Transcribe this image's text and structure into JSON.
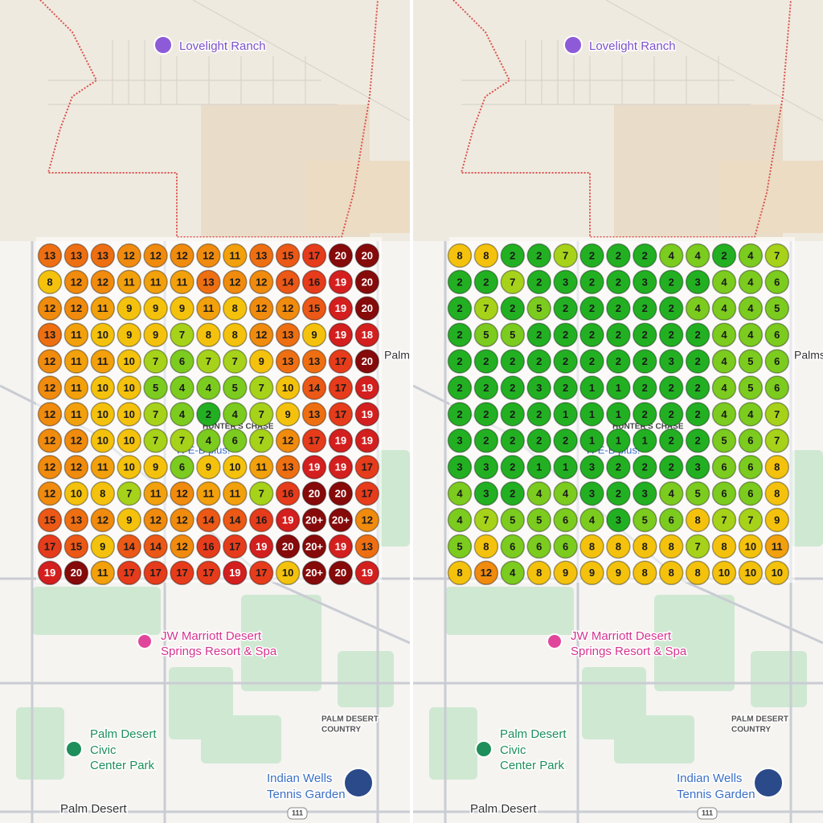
{
  "panels": [
    {
      "labels": [
        "Lovelight Ranch",
        "JW Marriott Desert",
        "Springs Resort & Spa",
        "PALM DESERT",
        "COUNTRY",
        "Palm Desert",
        "Civic",
        "Center Park",
        "Indian Wells",
        "Tennis Garden",
        "Palm Desert",
        "111",
        "HUNTER'S CHASE",
        "H-E-B plus!",
        "Palms"
      ],
      "grid": [
        [
          13,
          13,
          13,
          12,
          12,
          12,
          12,
          11,
          13,
          15,
          17,
          20,
          20
        ],
        [
          8,
          12,
          12,
          11,
          11,
          11,
          13,
          12,
          12,
          14,
          16,
          19,
          20
        ],
        [
          12,
          12,
          11,
          9,
          9,
          9,
          11,
          8,
          12,
          12,
          15,
          19,
          20
        ],
        [
          13,
          11,
          10,
          9,
          9,
          7,
          8,
          8,
          12,
          13,
          9,
          19,
          18
        ],
        [
          12,
          11,
          11,
          10,
          7,
          6,
          7,
          7,
          9,
          13,
          13,
          17,
          20
        ],
        [
          12,
          11,
          10,
          10,
          5,
          4,
          4,
          5,
          7,
          10,
          14,
          17,
          19
        ],
        [
          12,
          11,
          10,
          10,
          7,
          4,
          2,
          4,
          7,
          9,
          13,
          17,
          19
        ],
        [
          12,
          12,
          10,
          10,
          7,
          7,
          4,
          6,
          7,
          12,
          17,
          19,
          19
        ],
        [
          12,
          12,
          11,
          10,
          9,
          6,
          9,
          10,
          11,
          13,
          19,
          19,
          17
        ],
        [
          12,
          10,
          8,
          7,
          11,
          12,
          11,
          11,
          7,
          16,
          20,
          20,
          17
        ],
        [
          15,
          13,
          12,
          9,
          12,
          12,
          14,
          14,
          16,
          19,
          "20+",
          "20+",
          12
        ],
        [
          17,
          15,
          9,
          14,
          14,
          12,
          16,
          17,
          19,
          20,
          "20+",
          19,
          13
        ],
        [
          19,
          20,
          11,
          17,
          17,
          17,
          17,
          19,
          17,
          10,
          "20+",
          20,
          19
        ]
      ]
    },
    {
      "labels": [
        "Lovelight Ranch",
        "JW Marriott Desert",
        "Springs Resort & Spa",
        "PALM DESERT",
        "COUNTRY",
        "Palm Desert",
        "Civic",
        "Center Park",
        "Indian Wells",
        "Tennis Garden",
        "Palm Desert",
        "111",
        "HUNTER'S CHASE",
        "H-E-B plus!",
        "Palms"
      ],
      "grid": [
        [
          8,
          8,
          2,
          2,
          7,
          2,
          2,
          2,
          4,
          4,
          2,
          4,
          7
        ],
        [
          2,
          2,
          7,
          2,
          3,
          2,
          2,
          3,
          2,
          3,
          4,
          4,
          6
        ],
        [
          2,
          7,
          2,
          5,
          2,
          2,
          2,
          2,
          2,
          4,
          4,
          4,
          5
        ],
        [
          2,
          5,
          5,
          2,
          2,
          2,
          2,
          2,
          2,
          2,
          4,
          4,
          6
        ],
        [
          2,
          2,
          2,
          2,
          2,
          2,
          2,
          2,
          3,
          2,
          4,
          5,
          6
        ],
        [
          2,
          2,
          2,
          3,
          2,
          1,
          1,
          2,
          2,
          2,
          4,
          5,
          6
        ],
        [
          2,
          2,
          2,
          2,
          1,
          1,
          1,
          2,
          2,
          2,
          4,
          4,
          7
        ],
        [
          3,
          2,
          2,
          2,
          2,
          1,
          1,
          1,
          2,
          2,
          5,
          6,
          7
        ],
        [
          3,
          3,
          2,
          1,
          1,
          3,
          2,
          2,
          2,
          3,
          6,
          6,
          8
        ],
        [
          4,
          3,
          2,
          4,
          4,
          3,
          2,
          3,
          4,
          5,
          6,
          6,
          8
        ],
        [
          4,
          7,
          5,
          5,
          6,
          4,
          3,
          5,
          6,
          8,
          7,
          7,
          9
        ],
        [
          5,
          8,
          6,
          6,
          6,
          8,
          8,
          8,
          8,
          7,
          8,
          10,
          11
        ],
        [
          8,
          12,
          4,
          8,
          9,
          9,
          9,
          8,
          8,
          8,
          10,
          10,
          10
        ]
      ]
    }
  ]
}
